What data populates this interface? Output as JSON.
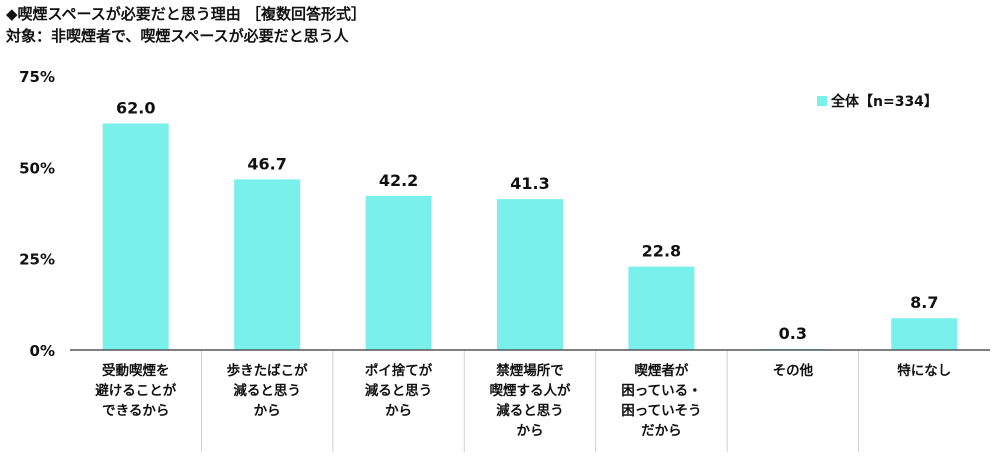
{
  "title": "◆喫煙スペースが必要だと思う理由 ［複数回答形式］",
  "subtitle": "対象：非喫煙者で、喫煙スペースが必要だと思う人",
  "colors": {
    "bar": "#79F0EA",
    "axis": "#555555",
    "divider": "#d0d0d0"
  },
  "chart_data": {
    "type": "bar",
    "ylim": [
      0,
      75
    ],
    "y_ticks": [
      {
        "value": 0,
        "label": "0%"
      },
      {
        "value": 25,
        "label": "25%"
      },
      {
        "value": 50,
        "label": "50%"
      },
      {
        "value": 75,
        "label": "75%"
      }
    ],
    "grid": false,
    "legend_position": "top-right",
    "categories": [
      [
        "受動喫煙を",
        "避けることが",
        "できるから"
      ],
      [
        "歩きたばこが",
        "減ると思う",
        "から"
      ],
      [
        "ポイ捨てが",
        "減ると思う",
        "から"
      ],
      [
        "禁煙場所で",
        "喫煙する人が",
        "減ると思う",
        "から"
      ],
      [
        "喫煙者が",
        "困っている・",
        "困っていそう",
        "だから"
      ],
      [
        "その他"
      ],
      [
        "特になし"
      ]
    ],
    "series": [
      {
        "name": "全体【n=334】",
        "values": [
          62.0,
          46.7,
          42.2,
          41.3,
          22.8,
          0.3,
          8.7
        ],
        "labels": [
          "62.0",
          "46.7",
          "42.2",
          "41.3",
          "22.8",
          "0.3",
          "8.7"
        ]
      }
    ]
  }
}
